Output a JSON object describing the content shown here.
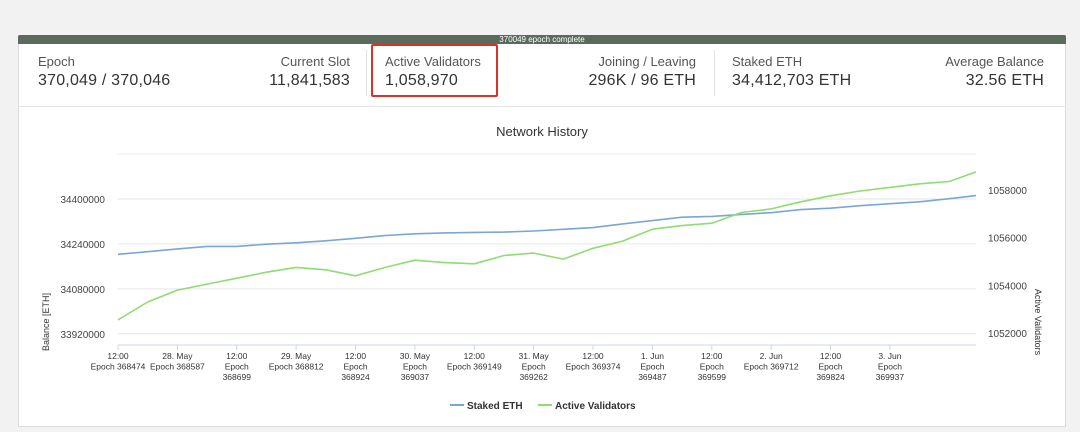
{
  "progress": {
    "label": "370049 epoch complete"
  },
  "stats": {
    "epoch": {
      "label": "Epoch",
      "value": "370,049 / 370,046"
    },
    "current_slot": {
      "label": "Current Slot",
      "value": "11,841,583"
    },
    "active_validators": {
      "label": "Active Validators",
      "value": "1,058,970"
    },
    "joining_leaving": {
      "label": "Joining / Leaving",
      "value": "296K / 96 ETH"
    },
    "staked_eth": {
      "label": "Staked ETH",
      "value": "34,412,703 ETH"
    },
    "average_balance": {
      "label": "Average Balance",
      "value": "32.56 ETH"
    }
  },
  "colors": {
    "staked_eth_line": "#7aa6d6",
    "active_validators_line": "#8fdc72",
    "highlight": "#d8322b",
    "progress_bar": "#5a6b5b"
  },
  "chart_data": {
    "type": "line",
    "title": "Network History",
    "ylabel": "Balance [ETH]",
    "y2label": "Active Validators",
    "ylim": [
      33880000,
      34560000
    ],
    "y2lim": [
      1051500,
      1059500
    ],
    "yticks": [
      "33920000",
      "34080000",
      "34240000",
      "34400000"
    ],
    "yticks_values": [
      33920000,
      34080000,
      34240000,
      34400000
    ],
    "y2ticks": [
      "1052000",
      "1054000",
      "1056000",
      "1058000"
    ],
    "y2ticks_values": [
      1052000,
      1054000,
      1056000,
      1058000
    ],
    "xlim": [
      0,
      14.45
    ],
    "xticks": [
      {
        "x": 0,
        "lines": [
          "12:00",
          "Epoch 368474"
        ]
      },
      {
        "x": 1,
        "lines": [
          "28. May",
          "Epoch 368587"
        ]
      },
      {
        "x": 2,
        "lines": [
          "12:00",
          "Epoch",
          "368699"
        ]
      },
      {
        "x": 3,
        "lines": [
          "29. May",
          "Epoch 368812"
        ]
      },
      {
        "x": 4,
        "lines": [
          "12:00",
          "Epoch",
          "368924"
        ]
      },
      {
        "x": 5,
        "lines": [
          "30. May",
          "Epoch",
          "369037"
        ]
      },
      {
        "x": 6,
        "lines": [
          "12:00",
          "Epoch 369149"
        ]
      },
      {
        "x": 7,
        "lines": [
          "31. May",
          "Epoch",
          "369262"
        ]
      },
      {
        "x": 8,
        "lines": [
          "12:00",
          "Epoch 369374"
        ]
      },
      {
        "x": 9,
        "lines": [
          "1. Jun",
          "Epoch",
          "369487"
        ]
      },
      {
        "x": 10,
        "lines": [
          "12:00",
          "Epoch",
          "369599"
        ]
      },
      {
        "x": 11,
        "lines": [
          "2. Jun",
          "Epoch 369712"
        ]
      },
      {
        "x": 12,
        "lines": [
          "12:00",
          "Epoch",
          "369824"
        ]
      },
      {
        "x": 13,
        "lines": [
          "3. Jun",
          "Epoch",
          "369937"
        ]
      }
    ],
    "series": [
      {
        "name": "Staked ETH",
        "axis": "left",
        "color": "#7aa6d6",
        "x": [
          0,
          0.5,
          1,
          1.5,
          2,
          2.5,
          3,
          3.5,
          4,
          4.5,
          5,
          5.5,
          6,
          6.5,
          7,
          7.5,
          8,
          8.5,
          9,
          9.5,
          10,
          10.5,
          11,
          11.5,
          12,
          12.5,
          13,
          13.5,
          14,
          14.45
        ],
        "values": [
          34203000,
          34212000,
          34222000,
          34231000,
          34231000,
          34239000,
          34244000,
          34251000,
          34260000,
          34270000,
          34276000,
          34279000,
          34281000,
          34282000,
          34286000,
          34292000,
          34298000,
          34311000,
          34323000,
          34335000,
          34338000,
          34345000,
          34351000,
          34362000,
          34367000,
          34376000,
          34383000,
          34390000,
          34401000,
          34412000
        ]
      },
      {
        "name": "Active Validators",
        "axis": "right",
        "color": "#8fdc72",
        "x": [
          0,
          0.5,
          1,
          1.5,
          2,
          2.5,
          3,
          3.5,
          4,
          4.5,
          5,
          5.5,
          6,
          6.5,
          7,
          7.5,
          8,
          8.5,
          9,
          9.5,
          10,
          10.5,
          11,
          11.5,
          12,
          12.5,
          13,
          13.5,
          14,
          14.45
        ],
        "values": [
          1052550,
          1053300,
          1053800,
          1054050,
          1054300,
          1054550,
          1054750,
          1054650,
          1054400,
          1054750,
          1055050,
          1054950,
          1054900,
          1055250,
          1055350,
          1055100,
          1055550,
          1055850,
          1056350,
          1056500,
          1056600,
          1057050,
          1057200,
          1057500,
          1057750,
          1057950,
          1058100,
          1058250,
          1058350,
          1058750
        ]
      }
    ],
    "legend": {
      "position": "bottom-center"
    },
    "grid": true
  }
}
